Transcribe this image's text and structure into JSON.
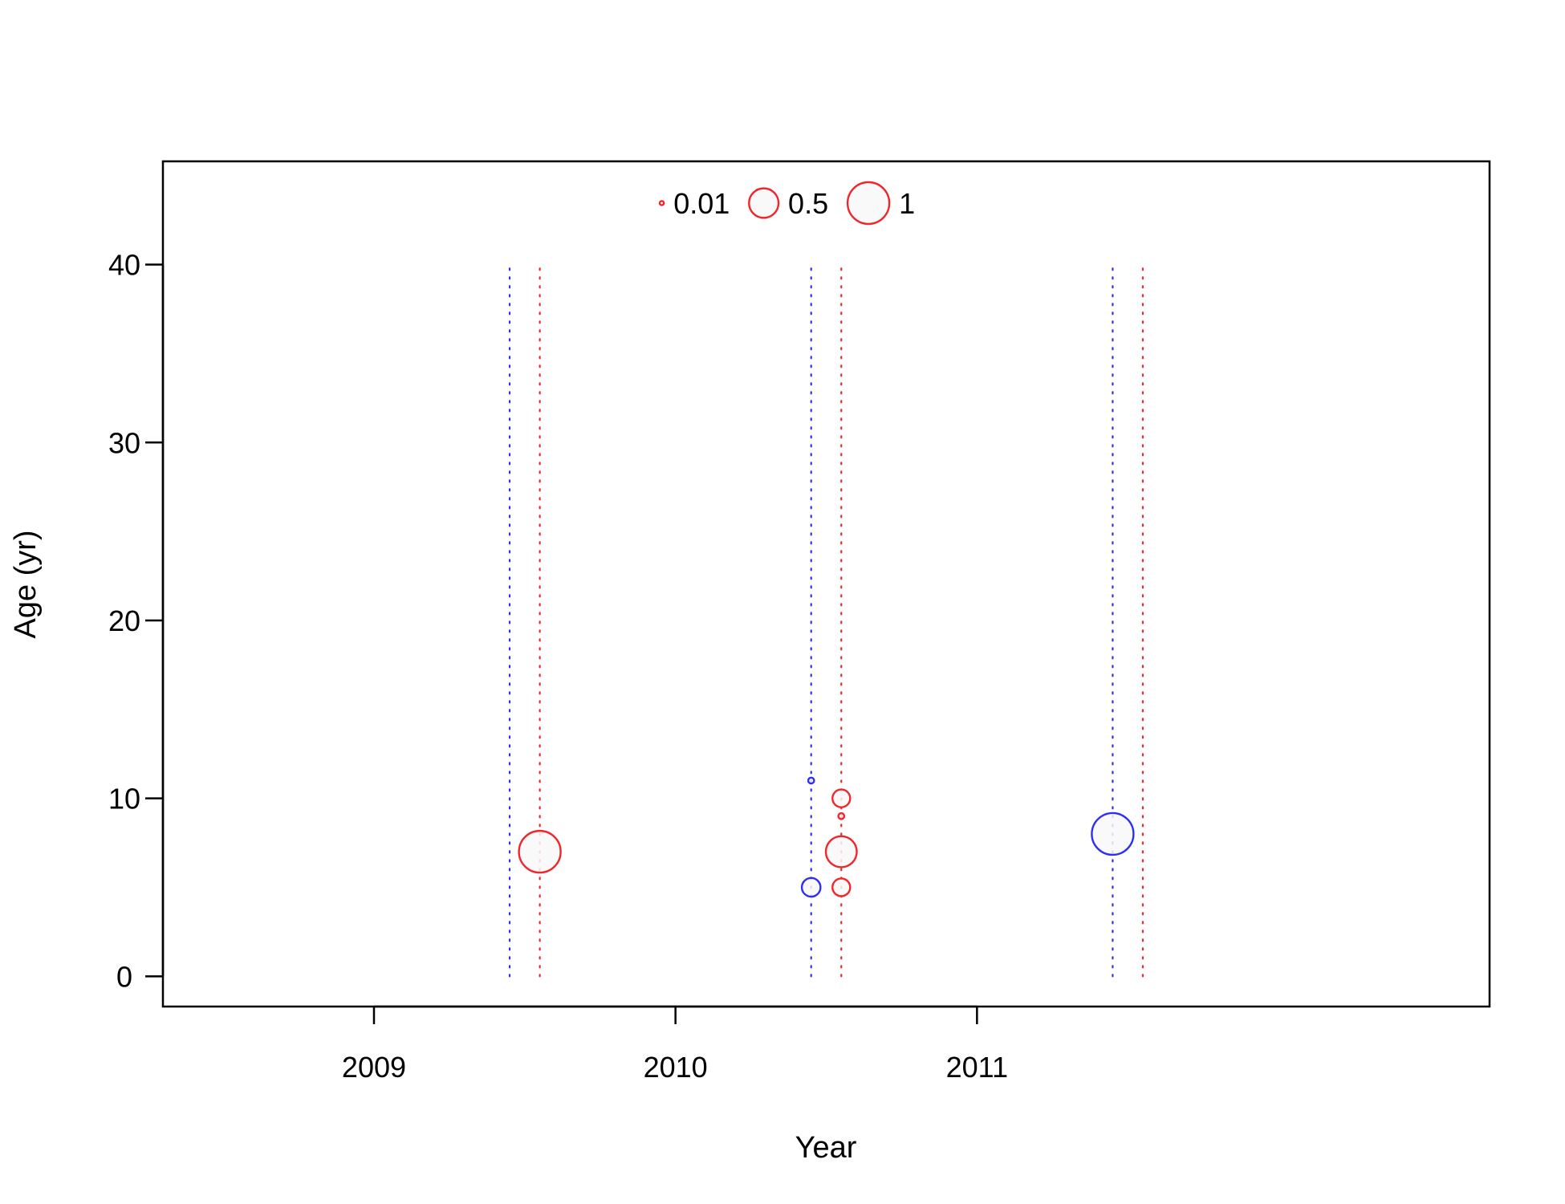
{
  "chart_data": {
    "type": "scatter",
    "title": "",
    "xlabel": "Year",
    "ylabel": "Age (yr)",
    "xlim": [
      2008.3,
      2012.7
    ],
    "ylim": [
      -1.7,
      45.8
    ],
    "x_ticks": [
      2009,
      2010,
      2011
    ],
    "y_ticks": [
      0,
      10,
      20,
      30,
      40
    ],
    "grid": false,
    "legend": {
      "placement": "top-center",
      "entries": [
        {
          "label": "0.01",
          "size": 0.01
        },
        {
          "label": "0.5",
          "size": 0.5
        },
        {
          "label": "1",
          "size": 1
        }
      ]
    },
    "colors": {
      "red": "#f0262b",
      "blue": "#2e2ef5"
    },
    "age_range": [
      0,
      40
    ],
    "guide_lines": [
      {
        "x": 2009.45,
        "color": "blue"
      },
      {
        "x": 2009.55,
        "color": "red"
      },
      {
        "x": 2010.45,
        "color": "blue"
      },
      {
        "x": 2010.55,
        "color": "red"
      },
      {
        "x": 2011.45,
        "color": "blue"
      },
      {
        "x": 2011.55,
        "color": "red"
      }
    ],
    "series": [
      {
        "color": "red",
        "points": [
          {
            "x": 2009.55,
            "y": 7,
            "size": 1.0
          },
          {
            "x": 2010.55,
            "y": 7,
            "size": 0.55
          },
          {
            "x": 2010.55,
            "y": 5,
            "size": 0.18
          },
          {
            "x": 2010.55,
            "y": 10,
            "size": 0.18
          },
          {
            "x": 2010.55,
            "y": 9,
            "size": 0.02
          }
        ]
      },
      {
        "color": "blue",
        "points": [
          {
            "x": 2010.45,
            "y": 5,
            "size": 0.2
          },
          {
            "x": 2010.45,
            "y": 11,
            "size": 0.02
          },
          {
            "x": 2011.45,
            "y": 8,
            "size": 1.0
          }
        ]
      }
    ]
  }
}
